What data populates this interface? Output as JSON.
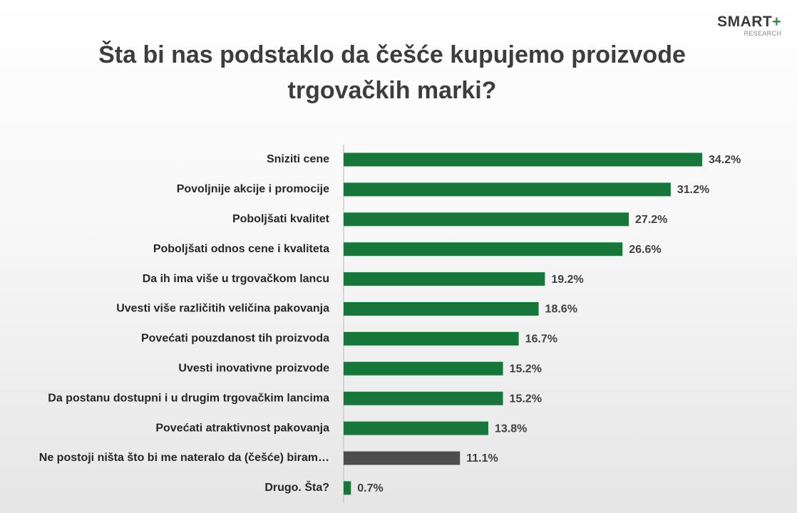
{
  "logo": {
    "main": "SMART",
    "plus": "+",
    "sub": "RESEARCH"
  },
  "chart_data": {
    "type": "bar",
    "orientation": "horizontal",
    "title": "Šta bi nas podstaklo da češće kupujemo proizvode trgovačkih marki?",
    "categories": [
      "Sniziti cene",
      "Povoljnije akcije i promocije",
      "Poboljšati kvalitet",
      "Poboljšati odnos cene i kvaliteta",
      "Da ih ima više u trgovačkom lancu",
      "Uvesti više različitih veličina pakovanja",
      "Povećati pouzdanost tih proizvoda",
      "Uvesti inovativne proizvode",
      "Da postanu dostupni i u drugim trgovačkim lancima",
      "Povećati atraktivnost pakovanja",
      "Ne postoji ništa što bi me nateralo da (češće) biram…",
      "Drugo. Šta?"
    ],
    "values": [
      34.2,
      31.2,
      27.2,
      26.6,
      19.2,
      18.6,
      16.7,
      15.2,
      15.2,
      13.8,
      11.1,
      0.7
    ],
    "value_labels": [
      "34.2%",
      "31.2%",
      "27.2%",
      "26.6%",
      "19.2%",
      "18.6%",
      "16.7%",
      "15.2%",
      "15.2%",
      "13.8%",
      "11.1%",
      "0.7%"
    ],
    "bar_colors": [
      "#17763a",
      "#17763a",
      "#17763a",
      "#17763a",
      "#17763a",
      "#17763a",
      "#17763a",
      "#17763a",
      "#17763a",
      "#17763a",
      "#4d4d4d",
      "#17763a"
    ],
    "xlim": [
      0,
      34.2
    ],
    "grid": false,
    "legend": "none"
  }
}
